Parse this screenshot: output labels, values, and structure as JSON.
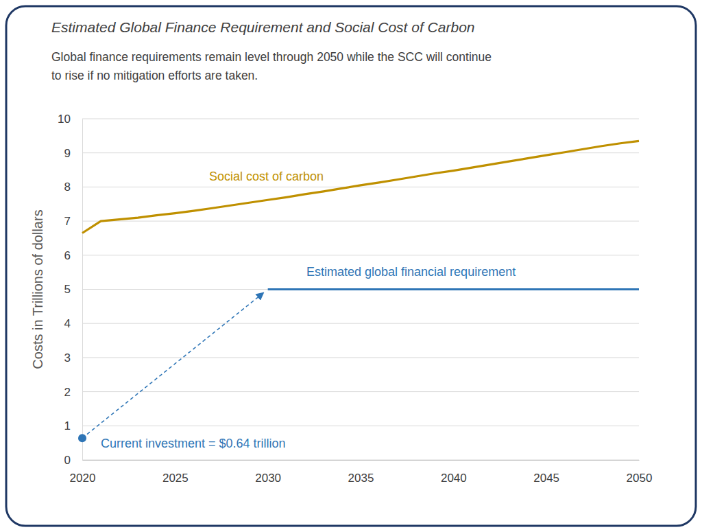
{
  "chart_data": {
    "type": "line",
    "title": "Estimated Global Finance Requirement and Social Cost of Carbon",
    "subtitle": [
      "Global finance requirements remain level through 2050 while the SCC will continue",
      "to rise if no mitigation efforts are taken."
    ],
    "y_label": "Costs in Trillions of dollars",
    "xlim": [
      2020,
      2050
    ],
    "xticks": [
      2020,
      2025,
      2030,
      2035,
      2040,
      2045,
      2050
    ],
    "ylim": [
      0,
      10
    ],
    "yticks": [
      0,
      1,
      2,
      3,
      4,
      5,
      6,
      7,
      8,
      9,
      10
    ],
    "grid": true,
    "series": [
      {
        "name": "Social cost of carbon",
        "type": "line",
        "color": "#BF9000",
        "line_style": "solid",
        "x": [
          2020,
          2021,
          2022,
          2023,
          2024,
          2025,
          2026,
          2027,
          2028,
          2029,
          2030,
          2031,
          2032,
          2033,
          2034,
          2035,
          2036,
          2037,
          2038,
          2039,
          2040,
          2041,
          2042,
          2043,
          2044,
          2045,
          2046,
          2047,
          2048,
          2049,
          2050
        ],
        "values": [
          6.65,
          7.0,
          7.05,
          7.1,
          7.17,
          7.23,
          7.3,
          7.38,
          7.46,
          7.54,
          7.62,
          7.7,
          7.79,
          7.87,
          7.96,
          8.05,
          8.13,
          8.22,
          8.31,
          8.4,
          8.48,
          8.57,
          8.66,
          8.75,
          8.84,
          8.93,
          9.02,
          9.11,
          9.2,
          9.28,
          9.35
        ]
      },
      {
        "name": "Estimated global financial requirement",
        "type": "line",
        "color": "#2E75B6",
        "line_style": "solid",
        "x": [
          2030,
          2050
        ],
        "values": [
          5,
          5
        ]
      },
      {
        "type": "scatter",
        "color": "#2E75B6",
        "marker": "circle",
        "x": [
          2020
        ],
        "values": [
          0.64
        ],
        "value_labels": [
          "Current investment = $0.64 trillion"
        ]
      }
    ]
  }
}
